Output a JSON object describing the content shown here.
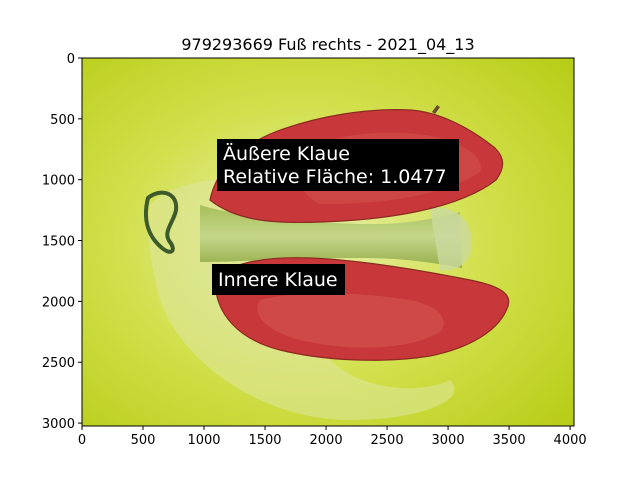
{
  "chart_data": {
    "type": "image",
    "title": "979293669 Fuß rechts - 2021_04_13",
    "xlim": [
      0,
      4032
    ],
    "ylim": [
      3024,
      0
    ],
    "xticks": [
      0,
      500,
      1000,
      1500,
      2000,
      2500,
      3000,
      3500,
      4000
    ],
    "yticks": [
      0,
      500,
      1000,
      1500,
      2000,
      2500,
      3000
    ],
    "annotations": [
      {
        "name": "outer-claw",
        "lines": [
          "Äußere Klaue",
          "Relative Fläche: 1.0477"
        ]
      },
      {
        "name": "inner-claw",
        "lines": [
          "Innere Klaue"
        ]
      }
    ],
    "colors": {
      "background": "#c8dc2a",
      "claw_highlight": "#c8383a",
      "annotation_box": "#000000",
      "annotation_text": "#ffffff"
    }
  }
}
